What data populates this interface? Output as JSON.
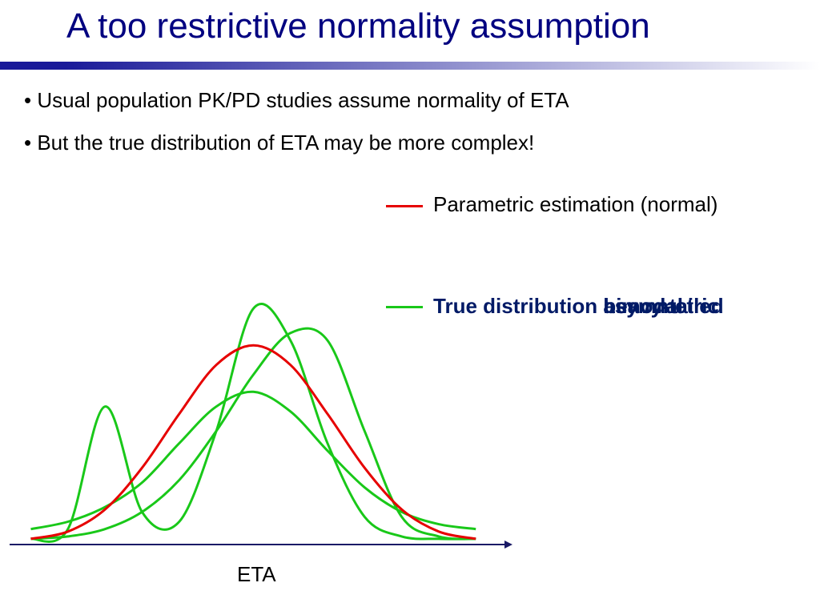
{
  "slide": {
    "title": "A too restrictive normality assumption",
    "bullets": [
      "Usual population PK/PD studies assume normality of ETA",
      "But the true distribution of ETA may be more complex!"
    ]
  },
  "legend": {
    "red_label": "Parametric estimation (normal)",
    "green_prefix": "True distribution",
    "green_overlap_words": [
      "bimodal",
      "asymmetric",
      "heavy-tailed"
    ]
  },
  "colors": {
    "title": "#000080",
    "bar_start": "#1a1a99",
    "bar_end": "#ffffff",
    "normal": "#e60000",
    "true": "#19c819",
    "legend_bold": "#001a66"
  },
  "chart_data": {
    "type": "line",
    "xlabel": "ETA",
    "ylabel": "",
    "title": "",
    "x": [
      -3,
      -2.5,
      -2,
      -1.5,
      -1,
      -0.5,
      0,
      0.5,
      1,
      1.5,
      2,
      2.5,
      3
    ],
    "series": [
      {
        "name": "Parametric estimation (normal)",
        "values": [
          0.01,
          0.04,
          0.13,
          0.3,
          0.52,
          0.72,
          0.8,
          0.72,
          0.52,
          0.3,
          0.13,
          0.04,
          0.01
        ]
      },
      {
        "name": "",
        "values": [
          0.01,
          0.05,
          0.55,
          0.12,
          0.08,
          0.45,
          0.95,
          0.82,
          0.4,
          0.1,
          0.02,
          0.01,
          0.01
        ]
      },
      {
        "name": "",
        "values": [
          0.01,
          0.02,
          0.05,
          0.12,
          0.25,
          0.45,
          0.68,
          0.85,
          0.82,
          0.45,
          0.1,
          0.02,
          0.01
        ]
      },
      {
        "name": "",
        "values": [
          0.05,
          0.08,
          0.14,
          0.24,
          0.4,
          0.55,
          0.61,
          0.53,
          0.37,
          0.22,
          0.12,
          0.07,
          0.05
        ]
      }
    ],
    "xlim": [
      -3.2,
      3.3
    ],
    "ylim": [
      0,
      1
    ]
  }
}
